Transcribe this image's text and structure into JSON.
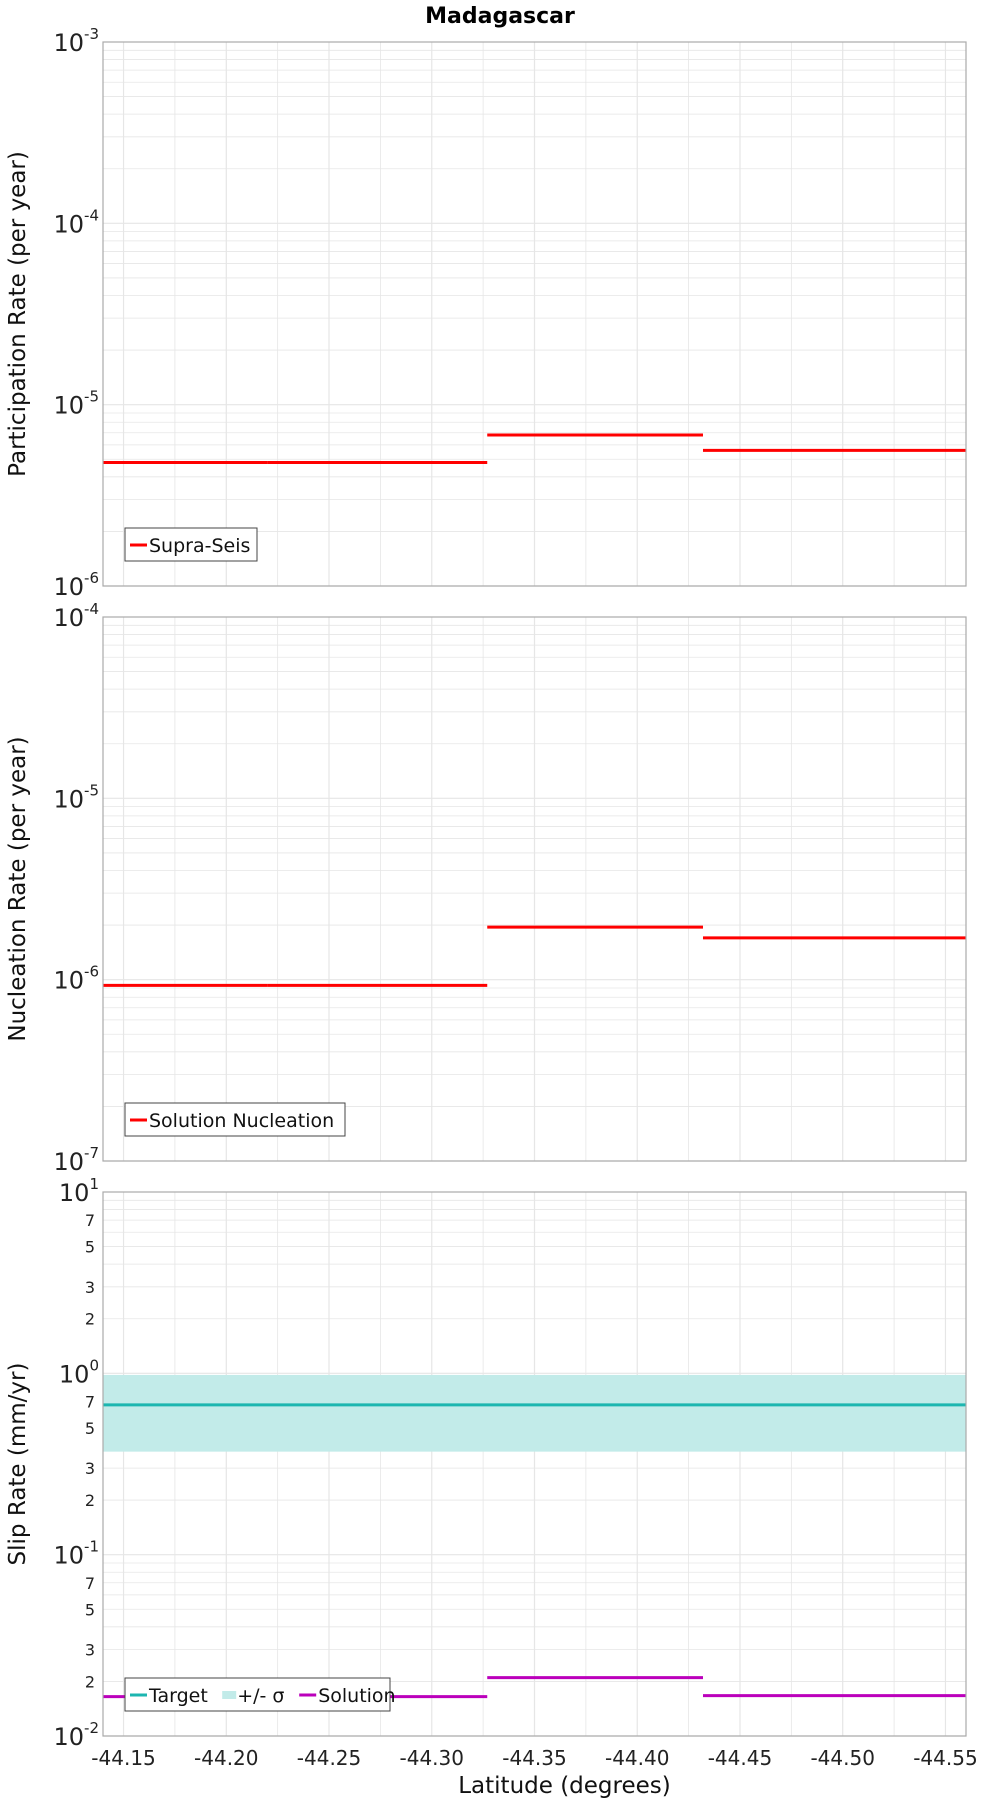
{
  "title": "Madagascar",
  "colors": {
    "participation": "#ff0000",
    "nucleation": "#ff0000",
    "target": "#1cb6b0",
    "sigma_band": "#c2ebe9",
    "solution": "#bb00bb",
    "grid": "#e6e6e6",
    "frame": "#aaaaaa"
  },
  "chart_data": [
    {
      "type": "line",
      "style": "step",
      "ylabel": "Participation Rate (per year)",
      "xlabel": "",
      "yscale": "log",
      "ylim": [
        1e-06,
        0.001
      ],
      "xlim": [
        -44.14,
        -44.56
      ],
      "grid": true,
      "legend_position": "bottom-left",
      "series": [
        {
          "name": "Supra-Seis",
          "color": "#ff0000",
          "segments": [
            {
              "x": [
                -44.14,
                -44.22
              ],
              "y": 4.8e-06
            },
            {
              "x": [
                -44.22,
                -44.327
              ],
              "y": 4.8e-06
            },
            {
              "x": [
                -44.327,
                -44.432
              ],
              "y": 6.8e-06
            },
            {
              "x": [
                -44.432,
                -44.56
              ],
              "y": 5.6e-06
            }
          ]
        }
      ],
      "ytick_labels": [
        {
          "base": "10",
          "exp": "-6"
        },
        {
          "base": "10",
          "exp": "-5"
        },
        {
          "base": "10",
          "exp": "-4"
        },
        {
          "base": "10",
          "exp": "-3"
        }
      ]
    },
    {
      "type": "line",
      "style": "step",
      "ylabel": "Nucleation Rate (per year)",
      "xlabel": "",
      "yscale": "log",
      "ylim": [
        1e-07,
        0.0001
      ],
      "xlim": [
        -44.14,
        -44.56
      ],
      "grid": true,
      "legend_position": "bottom-left",
      "series": [
        {
          "name": "Solution Nucleation",
          "color": "#ff0000",
          "segments": [
            {
              "x": [
                -44.14,
                -44.22
              ],
              "y": 9.3e-07
            },
            {
              "x": [
                -44.22,
                -44.327
              ],
              "y": 9.3e-07
            },
            {
              "x": [
                -44.327,
                -44.432
              ],
              "y": 1.95e-06
            },
            {
              "x": [
                -44.432,
                -44.56
              ],
              "y": 1.7e-06
            }
          ]
        }
      ],
      "ytick_labels": [
        {
          "base": "10",
          "exp": "-7"
        },
        {
          "base": "10",
          "exp": "-6"
        },
        {
          "base": "10",
          "exp": "-5"
        },
        {
          "base": "10",
          "exp": "-4"
        }
      ]
    },
    {
      "type": "line",
      "style": "step",
      "ylabel": "Slip Rate (mm/yr)",
      "xlabel": "Latitude (degrees)",
      "yscale": "log",
      "ylim": [
        0.01,
        10
      ],
      "xlim": [
        -44.14,
        -44.56
      ],
      "grid": true,
      "legend_position": "bottom-left",
      "xtick_labels": [
        "-44.15",
        "-44.20",
        "-44.25",
        "-44.30",
        "-44.35",
        "-44.40",
        "-44.45",
        "-44.50",
        "-44.55"
      ],
      "xtick_values": [
        -44.15,
        -44.2,
        -44.25,
        -44.3,
        -44.35,
        -44.4,
        -44.45,
        -44.5,
        -44.55
      ],
      "ytick_labels": [
        {
          "base": "10",
          "exp": "-2"
        },
        {
          "base": "10",
          "exp": "-1"
        },
        {
          "base": "10",
          "exp": "0"
        },
        {
          "base": "10",
          "exp": "1"
        }
      ],
      "minor_tick_labels": [
        {
          "value": 0.02,
          "label": "2"
        },
        {
          "value": 0.03,
          "label": "3"
        },
        {
          "value": 0.05,
          "label": "5"
        },
        {
          "value": 0.07,
          "label": "7"
        },
        {
          "value": 0.2,
          "label": "2"
        },
        {
          "value": 0.3,
          "label": "3"
        },
        {
          "value": 0.5,
          "label": "5"
        },
        {
          "value": 0.7,
          "label": "7"
        },
        {
          "value": 2,
          "label": "2"
        },
        {
          "value": 3,
          "label": "3"
        },
        {
          "value": 5,
          "label": "5"
        },
        {
          "value": 7,
          "label": "7"
        }
      ],
      "series": [
        {
          "name": "Target",
          "color": "#1cb6b0",
          "segments": [
            {
              "x": [
                -44.14,
                -44.56
              ],
              "y": 0.67
            }
          ]
        },
        {
          "name": "+/- σ",
          "color": "#c2ebe9",
          "band": {
            "x": [
              -44.14,
              -44.56
            ],
            "y_low": 0.37,
            "y_high": 0.98
          }
        },
        {
          "name": "Solution",
          "color": "#bb00bb",
          "segments": [
            {
              "x": [
                -44.14,
                -44.22
              ],
              "y": 0.0165
            },
            {
              "x": [
                -44.22,
                -44.327
              ],
              "y": 0.0165
            },
            {
              "x": [
                -44.327,
                -44.432
              ],
              "y": 0.021
            },
            {
              "x": [
                -44.432,
                -44.56
              ],
              "y": 0.0167
            }
          ]
        }
      ]
    }
  ]
}
